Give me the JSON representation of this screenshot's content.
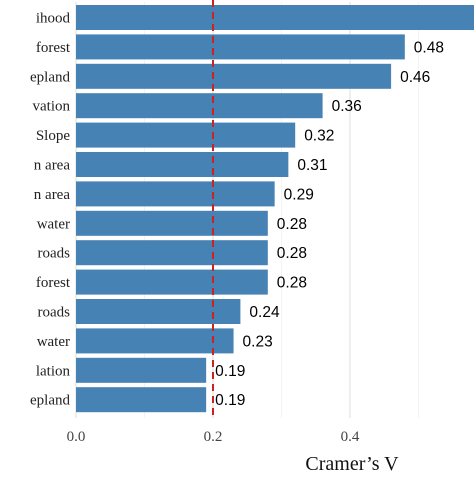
{
  "chart_data": {
    "type": "bar",
    "orientation": "horizontal",
    "categories": [
      "ihood",
      "forest",
      "epland",
      "vation",
      "Slope",
      "n area",
      "n area",
      "water",
      "roads",
      "forest",
      "roads",
      "water",
      "lation",
      "epland"
    ],
    "values": [
      0.6,
      0.48,
      0.46,
      0.36,
      0.32,
      0.31,
      0.29,
      0.28,
      0.28,
      0.28,
      0.24,
      0.23,
      0.19,
      0.19
    ],
    "value_labels": [
      "",
      "0.48",
      "0.46",
      "0.36",
      "0.32",
      "0.31",
      "0.29",
      "0.28",
      "0.28",
      "0.28",
      "0.24",
      "0.23",
      "0.19",
      "0.19"
    ],
    "xlabel": "Cramer’s V",
    "x_ticks": [
      "0.0",
      "0.2",
      "0.4"
    ],
    "x_tick_values": [
      0.0,
      0.2,
      0.4
    ],
    "xlim": [
      0.0,
      0.6
    ],
    "reference_line": {
      "value": 0.2,
      "style": "dashed",
      "color": "#cc2222"
    },
    "bar_color": "#4682b4",
    "grid": true
  }
}
